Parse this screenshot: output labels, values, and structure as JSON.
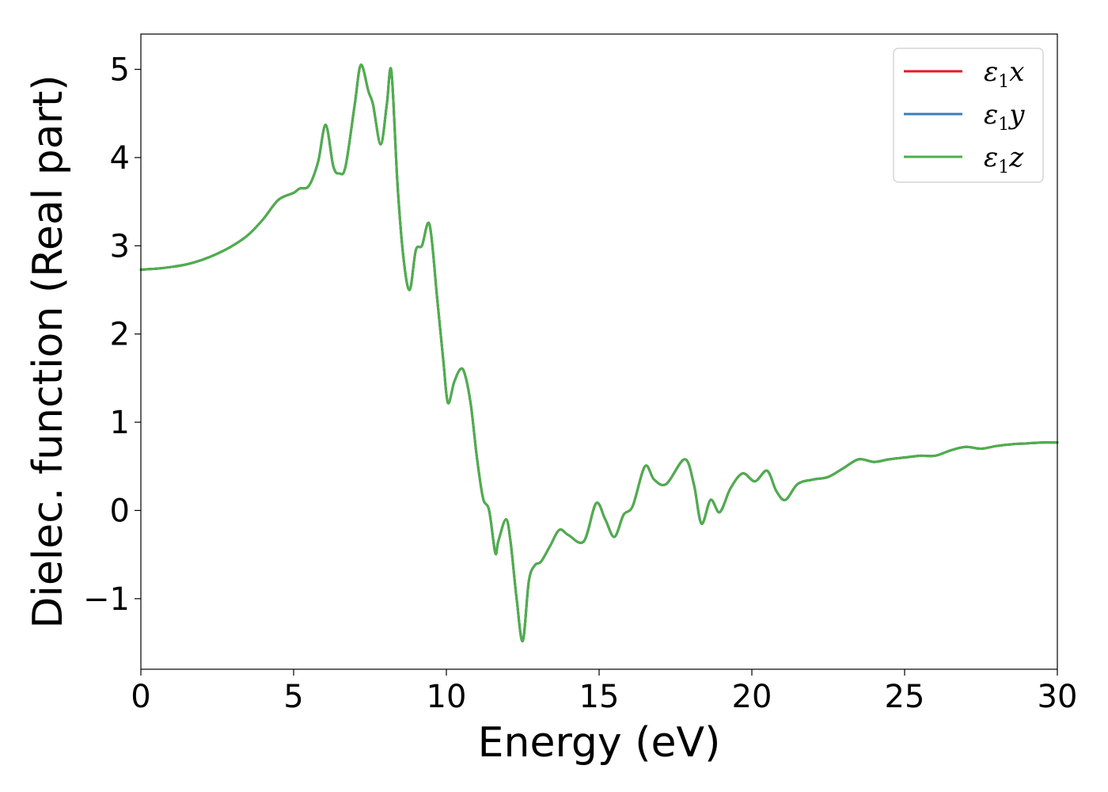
{
  "chart_data": {
    "type": "line",
    "title": "",
    "xlabel": "Energy (eV)",
    "ylabel": "Dielec. function (Real part)",
    "xlim": [
      0,
      30
    ],
    "ylim": [
      -1.8,
      5.4
    ],
    "xticks": [
      0,
      5,
      10,
      15,
      20,
      25,
      30
    ],
    "yticks": [
      -1,
      0,
      1,
      2,
      3,
      4,
      5
    ],
    "xtick_labels": [
      "0",
      "5",
      "10",
      "15",
      "20",
      "25",
      "30"
    ],
    "ytick_labels": [
      "−1",
      "0",
      "1",
      "2",
      "3",
      "4",
      "5"
    ],
    "grid": false,
    "legend_position": "top-right",
    "series": [
      {
        "name": "ε1x",
        "legend_base": "ε",
        "legend_sub": "1",
        "legend_tail": "x",
        "color": "#e41a1c",
        "x": [
          0,
          0.5,
          1,
          1.5,
          2,
          2.5,
          3,
          3.5,
          4,
          4.5,
          5,
          5.2,
          5.5,
          5.8,
          6.05,
          6.3,
          6.5,
          6.7,
          7.0,
          7.2,
          7.45,
          7.6,
          7.85,
          8.05,
          8.2,
          8.4,
          8.6,
          8.8,
          9.0,
          9.2,
          9.45,
          9.7,
          9.9,
          10.05,
          10.25,
          10.45,
          10.6,
          10.8,
          11.0,
          11.2,
          11.4,
          11.6,
          11.7,
          11.95,
          12.1,
          12.3,
          12.5,
          12.7,
          12.9,
          13.1,
          13.4,
          13.7,
          14.0,
          14.5,
          14.9,
          15.2,
          15.5,
          15.8,
          16.1,
          16.5,
          16.8,
          17.2,
          17.8,
          18.1,
          18.35,
          18.65,
          18.95,
          19.3,
          19.7,
          20.1,
          20.5,
          20.8,
          21.1,
          21.5,
          22.0,
          22.5,
          23.0,
          23.5,
          24.0,
          24.5,
          25.0,
          25.5,
          26.0,
          26.5,
          27.0,
          27.5,
          28.0,
          28.5,
          29.0,
          29.5,
          30.0
        ],
        "y": [
          2.73,
          2.74,
          2.76,
          2.79,
          2.84,
          2.91,
          3.0,
          3.12,
          3.3,
          3.52,
          3.6,
          3.65,
          3.68,
          3.95,
          4.37,
          3.9,
          3.82,
          3.9,
          4.6,
          5.05,
          4.75,
          4.6,
          4.15,
          4.6,
          4.98,
          3.7,
          2.85,
          2.5,
          2.95,
          3.0,
          3.24,
          2.4,
          1.7,
          1.22,
          1.45,
          1.6,
          1.55,
          1.2,
          0.6,
          0.14,
          0.0,
          -0.48,
          -0.35,
          -0.1,
          -0.35,
          -1.0,
          -1.48,
          -0.8,
          -0.62,
          -0.58,
          -0.4,
          -0.22,
          -0.28,
          -0.35,
          0.08,
          -0.1,
          -0.3,
          -0.05,
          0.05,
          0.5,
          0.35,
          0.3,
          0.58,
          0.3,
          -0.15,
          0.12,
          -0.02,
          0.25,
          0.42,
          0.33,
          0.45,
          0.22,
          0.12,
          0.3,
          0.35,
          0.38,
          0.48,
          0.58,
          0.55,
          0.58,
          0.6,
          0.62,
          0.62,
          0.68,
          0.72,
          0.7,
          0.73,
          0.75,
          0.76,
          0.77,
          0.77
        ]
      },
      {
        "name": "ε1y",
        "legend_base": "ε",
        "legend_sub": "1",
        "legend_tail": "y",
        "color": "#377eb8",
        "x": [
          0,
          0.5,
          1,
          1.5,
          2,
          2.5,
          3,
          3.5,
          4,
          4.5,
          5,
          5.2,
          5.5,
          5.8,
          6.05,
          6.3,
          6.5,
          6.7,
          7.0,
          7.2,
          7.45,
          7.6,
          7.85,
          8.05,
          8.2,
          8.4,
          8.6,
          8.8,
          9.0,
          9.2,
          9.45,
          9.7,
          9.9,
          10.05,
          10.25,
          10.45,
          10.6,
          10.8,
          11.0,
          11.2,
          11.4,
          11.6,
          11.7,
          11.95,
          12.1,
          12.3,
          12.5,
          12.7,
          12.9,
          13.1,
          13.4,
          13.7,
          14.0,
          14.5,
          14.9,
          15.2,
          15.5,
          15.8,
          16.1,
          16.5,
          16.8,
          17.2,
          17.8,
          18.1,
          18.35,
          18.65,
          18.95,
          19.3,
          19.7,
          20.1,
          20.5,
          20.8,
          21.1,
          21.5,
          22.0,
          22.5,
          23.0,
          23.5,
          24.0,
          24.5,
          25.0,
          25.5,
          26.0,
          26.5,
          27.0,
          27.5,
          28.0,
          28.5,
          29.0,
          29.5,
          30.0
        ],
        "y": [
          2.73,
          2.74,
          2.76,
          2.79,
          2.84,
          2.91,
          3.0,
          3.12,
          3.3,
          3.52,
          3.6,
          3.65,
          3.68,
          3.95,
          4.37,
          3.9,
          3.82,
          3.9,
          4.6,
          5.05,
          4.75,
          4.6,
          4.15,
          4.6,
          4.98,
          3.7,
          2.85,
          2.5,
          2.95,
          3.0,
          3.24,
          2.4,
          1.7,
          1.22,
          1.45,
          1.6,
          1.55,
          1.2,
          0.6,
          0.14,
          0.0,
          -0.48,
          -0.35,
          -0.1,
          -0.35,
          -1.0,
          -1.48,
          -0.8,
          -0.62,
          -0.58,
          -0.4,
          -0.22,
          -0.28,
          -0.35,
          0.08,
          -0.1,
          -0.3,
          -0.05,
          0.05,
          0.5,
          0.35,
          0.3,
          0.58,
          0.3,
          -0.15,
          0.12,
          -0.02,
          0.25,
          0.42,
          0.33,
          0.45,
          0.22,
          0.12,
          0.3,
          0.35,
          0.38,
          0.48,
          0.58,
          0.55,
          0.58,
          0.6,
          0.62,
          0.62,
          0.68,
          0.72,
          0.7,
          0.73,
          0.75,
          0.76,
          0.77,
          0.77
        ]
      },
      {
        "name": "ε1z",
        "legend_base": "ε",
        "legend_sub": "1",
        "legend_tail": "z",
        "color": "#4daf4a",
        "x": [
          0,
          0.5,
          1,
          1.5,
          2,
          2.5,
          3,
          3.5,
          4,
          4.5,
          5,
          5.2,
          5.5,
          5.8,
          6.05,
          6.3,
          6.5,
          6.7,
          7.0,
          7.2,
          7.45,
          7.6,
          7.85,
          8.05,
          8.2,
          8.4,
          8.6,
          8.8,
          9.0,
          9.2,
          9.45,
          9.7,
          9.9,
          10.05,
          10.25,
          10.45,
          10.6,
          10.8,
          11.0,
          11.2,
          11.4,
          11.6,
          11.7,
          11.95,
          12.1,
          12.3,
          12.5,
          12.7,
          12.9,
          13.1,
          13.4,
          13.7,
          14.0,
          14.5,
          14.9,
          15.2,
          15.5,
          15.8,
          16.1,
          16.5,
          16.8,
          17.2,
          17.8,
          18.1,
          18.35,
          18.65,
          18.95,
          19.3,
          19.7,
          20.1,
          20.5,
          20.8,
          21.1,
          21.5,
          22.0,
          22.5,
          23.0,
          23.5,
          24.0,
          24.5,
          25.0,
          25.5,
          26.0,
          26.5,
          27.0,
          27.5,
          28.0,
          28.5,
          29.0,
          29.5,
          30.0
        ],
        "y": [
          2.73,
          2.74,
          2.76,
          2.79,
          2.84,
          2.91,
          3.0,
          3.12,
          3.3,
          3.52,
          3.6,
          3.65,
          3.68,
          3.95,
          4.37,
          3.9,
          3.82,
          3.9,
          4.6,
          5.05,
          4.75,
          4.6,
          4.15,
          4.6,
          4.98,
          3.7,
          2.85,
          2.5,
          2.95,
          3.0,
          3.24,
          2.4,
          1.7,
          1.22,
          1.45,
          1.6,
          1.55,
          1.2,
          0.6,
          0.14,
          0.0,
          -0.48,
          -0.35,
          -0.1,
          -0.35,
          -1.0,
          -1.48,
          -0.8,
          -0.62,
          -0.58,
          -0.4,
          -0.22,
          -0.28,
          -0.35,
          0.08,
          -0.1,
          -0.3,
          -0.05,
          0.05,
          0.5,
          0.35,
          0.3,
          0.58,
          0.3,
          -0.15,
          0.12,
          -0.02,
          0.25,
          0.42,
          0.33,
          0.45,
          0.22,
          0.12,
          0.3,
          0.35,
          0.38,
          0.48,
          0.58,
          0.55,
          0.58,
          0.6,
          0.62,
          0.62,
          0.68,
          0.72,
          0.7,
          0.73,
          0.75,
          0.76,
          0.77,
          0.77
        ]
      }
    ]
  }
}
